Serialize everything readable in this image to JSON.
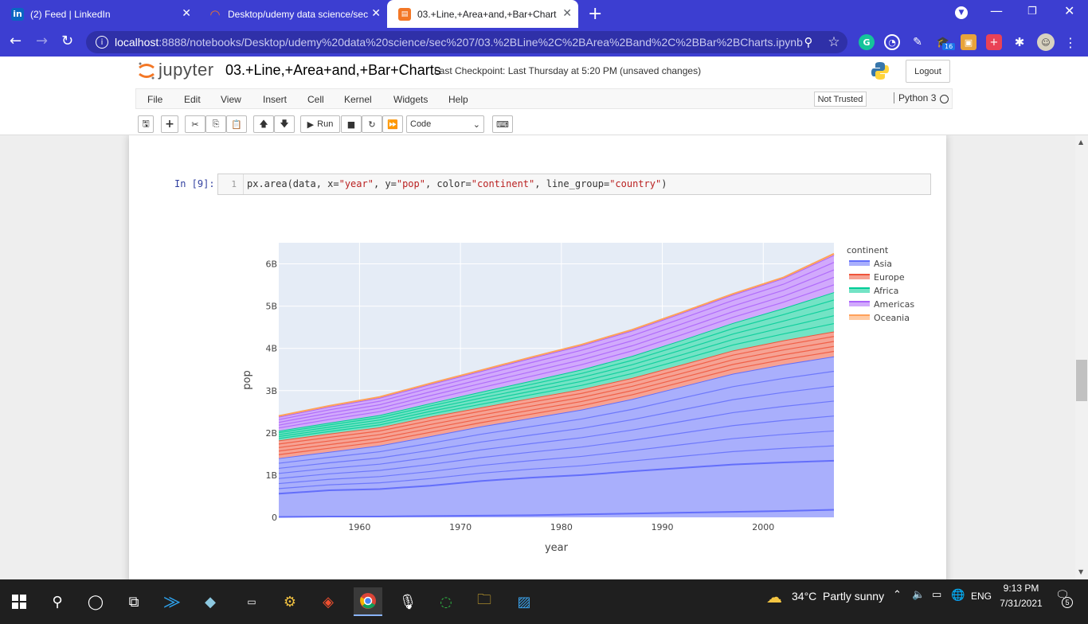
{
  "browser": {
    "tabs": [
      {
        "title": "(2) Feed | LinkedIn",
        "icon": "linkedin-icon"
      },
      {
        "title": "Desktop/udemy data science/sec",
        "icon": "jupyter-icon"
      },
      {
        "title": "03.+Line,+Area+and,+Bar+Chart",
        "icon": "notebook-icon"
      }
    ],
    "url_host": "localhost",
    "url_path": ":8888/notebooks/Desktop/udemy%20data%20science/sec%207/03.%2BLine%2C%2BArea%2Band%2C%2BBar%2BCharts.ipynb",
    "extension_badge": "16"
  },
  "jupyter": {
    "logo_text": "jupyter",
    "notebook_name": "03.+Line,+Area+and,+Bar+Charts",
    "checkpoint": "Last Checkpoint: Last Thursday at 5:20 PM",
    "unsaved": "(unsaved changes)",
    "logout": "Logout",
    "menu": [
      "File",
      "Edit",
      "View",
      "Insert",
      "Cell",
      "Kernel",
      "Widgets",
      "Help"
    ],
    "trusted": "Not Trusted",
    "kernel": "Python 3",
    "run_label": "Run",
    "cell_type": "Code"
  },
  "cell": {
    "prompt": "In [9]:",
    "line_number": "1",
    "code_parts": [
      {
        "t": "px.area(data, x=",
        "c": "#333333"
      },
      {
        "t": "\"year\"",
        "c": "#ba2121"
      },
      {
        "t": ", y=",
        "c": "#333333"
      },
      {
        "t": "\"pop\"",
        "c": "#ba2121"
      },
      {
        "t": ", color=",
        "c": "#333333"
      },
      {
        "t": "\"continent\"",
        "c": "#ba2121"
      },
      {
        "t": ", line_group=",
        "c": "#333333"
      },
      {
        "t": "\"country\"",
        "c": "#ba2121"
      },
      {
        "t": ")",
        "c": "#333333"
      }
    ]
  },
  "chart_data": {
    "type": "area",
    "xlabel": "year",
    "ylabel": "pop",
    "xlim": [
      1952,
      2007
    ],
    "ylim": [
      0,
      6.5
    ],
    "x_ticks": [
      1960,
      1970,
      1980,
      1990,
      2000
    ],
    "y_ticks": [
      {
        "v": 0,
        "label": "0"
      },
      {
        "v": 1,
        "label": "1B"
      },
      {
        "v": 2,
        "label": "2B"
      },
      {
        "v": 3,
        "label": "3B"
      },
      {
        "v": 4,
        "label": "4B"
      },
      {
        "v": 5,
        "label": "5B"
      },
      {
        "v": 6,
        "label": "6B"
      }
    ],
    "legend_title": "continent",
    "legend_position": "top-right",
    "x": [
      1952,
      1957,
      1962,
      1967,
      1972,
      1977,
      1982,
      1987,
      1992,
      1997,
      2002,
      2007
    ],
    "series": [
      {
        "name": "Asia",
        "color": "#636efa",
        "cumulative_top": [
          1.4,
          1.55,
          1.7,
          1.92,
          2.15,
          2.35,
          2.55,
          2.8,
          3.1,
          3.4,
          3.62,
          3.81
        ]
      },
      {
        "name": "Europe",
        "color": "#ef553b",
        "cumulative_top": [
          1.82,
          1.98,
          2.13,
          2.38,
          2.6,
          2.82,
          3.03,
          3.3,
          3.62,
          3.95,
          4.19,
          4.4
        ]
      },
      {
        "name": "Africa",
        "color": "#00cc96",
        "cumulative_top": [
          2.05,
          2.24,
          2.42,
          2.7,
          2.97,
          3.23,
          3.5,
          3.82,
          4.2,
          4.6,
          4.95,
          5.33
        ]
      },
      {
        "name": "Americas",
        "color": "#ab63fa",
        "cumulative_top": [
          2.38,
          2.62,
          2.83,
          3.15,
          3.46,
          3.77,
          4.07,
          4.42,
          4.84,
          5.27,
          5.66,
          6.21
        ]
      },
      {
        "name": "Oceania",
        "color": "#ffa15a",
        "cumulative_top": [
          2.4,
          2.64,
          2.85,
          3.17,
          3.48,
          3.79,
          4.09,
          4.44,
          4.86,
          5.29,
          5.68,
          6.24
        ]
      }
    ],
    "notable_country_lines": [
      {
        "series": "Asia",
        "values": [
          0.56,
          0.64,
          0.67,
          0.75,
          0.86,
          0.94,
          1.0,
          1.09,
          1.17,
          1.25,
          1.3,
          1.34
        ]
      },
      {
        "series": "Asia",
        "values": [
          0.01,
          0.02,
          0.02,
          0.03,
          0.04,
          0.05,
          0.07,
          0.09,
          0.11,
          0.13,
          0.15,
          0.18
        ]
      }
    ]
  },
  "taskbar": {
    "weather": "34°C  Partly sunny",
    "lang": "ENG",
    "time": "9:13 PM",
    "date": "7/31/2021",
    "notifications": "5"
  }
}
